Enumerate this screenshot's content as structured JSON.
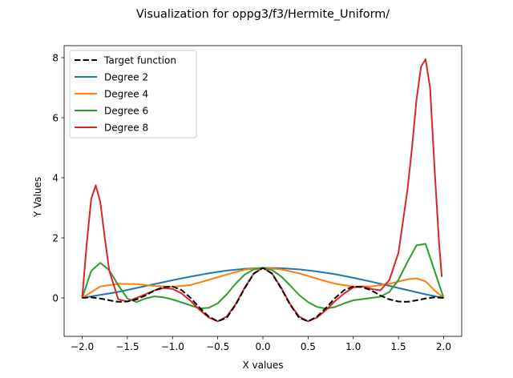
{
  "chart_data": {
    "type": "line",
    "title": "Visualization for oppg3/f3/Hermite_Uniform/",
    "xlabel": "X values",
    "ylabel": "Y Values",
    "xlim": [
      -2.2,
      2.2
    ],
    "ylim": [
      -1.28,
      8.4
    ],
    "xticks": [
      -2.0,
      -1.5,
      -1.0,
      -0.5,
      0.0,
      0.5,
      1.0,
      1.5,
      2.0
    ],
    "xtick_labels": [
      "−2.0",
      "−1.5",
      "−1.0",
      "−0.5",
      "0.0",
      "0.5",
      "1.0",
      "1.5",
      "2.0"
    ],
    "yticks": [
      0,
      2,
      4,
      6,
      8
    ],
    "ytick_labels": [
      "0",
      "2",
      "4",
      "6",
      "8"
    ],
    "grid": false,
    "legend_position": "upper-left",
    "series": [
      {
        "name": "Target function",
        "color": "#000000",
        "dash": "dashed",
        "x": [
          -2.0,
          -1.9,
          -1.8,
          -1.7,
          -1.6,
          -1.5,
          -1.4,
          -1.3,
          -1.2,
          -1.1,
          -1.0,
          -0.9,
          -0.8,
          -0.7,
          -0.6,
          -0.5,
          -0.4,
          -0.3,
          -0.2,
          -0.1,
          0.0,
          0.1,
          0.2,
          0.3,
          0.4,
          0.5,
          0.6,
          0.7,
          0.8,
          0.9,
          1.0,
          1.1,
          1.2,
          1.3,
          1.4,
          1.5,
          1.6,
          1.7,
          1.8,
          1.9,
          2.0
        ],
        "y": [
          0.0,
          0.02,
          -0.02,
          -0.08,
          -0.13,
          -0.12,
          -0.05,
          0.08,
          0.25,
          0.36,
          0.38,
          0.26,
          0.0,
          -0.33,
          -0.62,
          -0.78,
          -0.66,
          -0.22,
          0.33,
          0.81,
          1.0,
          0.81,
          0.33,
          -0.22,
          -0.66,
          -0.78,
          -0.62,
          -0.33,
          0.0,
          0.26,
          0.38,
          0.36,
          0.25,
          0.08,
          -0.05,
          -0.12,
          -0.13,
          -0.08,
          -0.02,
          0.02,
          0.0
        ]
      },
      {
        "name": "Degree 2",
        "color": "#1f77b4",
        "dash": "solid",
        "x": [
          -2.0,
          -1.8,
          -1.6,
          -1.4,
          -1.2,
          -1.0,
          -0.8,
          -0.6,
          -0.4,
          -0.2,
          0.0,
          0.2,
          0.4,
          0.6,
          0.8,
          1.0,
          1.2,
          1.4,
          1.6,
          1.8,
          2.0
        ],
        "y": [
          0.0,
          0.1,
          0.2,
          0.33,
          0.46,
          0.59,
          0.71,
          0.82,
          0.91,
          0.97,
          1.0,
          0.99,
          0.95,
          0.88,
          0.79,
          0.67,
          0.54,
          0.4,
          0.26,
          0.12,
          0.0
        ]
      },
      {
        "name": "Degree 4",
        "color": "#ff7f0e",
        "dash": "solid",
        "x": [
          -2.0,
          -1.8,
          -1.6,
          -1.4,
          -1.2,
          -1.0,
          -0.8,
          -0.6,
          -0.4,
          -0.2,
          0.0,
          0.2,
          0.4,
          0.6,
          0.8,
          1.0,
          1.2,
          1.4,
          1.6,
          1.7,
          1.8,
          1.9,
          2.0
        ],
        "y": [
          0.0,
          0.38,
          0.47,
          0.46,
          0.4,
          0.37,
          0.43,
          0.6,
          0.78,
          0.94,
          1.0,
          0.95,
          0.82,
          0.64,
          0.47,
          0.38,
          0.38,
          0.47,
          0.62,
          0.65,
          0.55,
          0.25,
          0.0
        ]
      },
      {
        "name": "Degree 6",
        "color": "#2ca02c",
        "dash": "solid",
        "x": [
          -2.0,
          -1.9,
          -1.8,
          -1.7,
          -1.6,
          -1.5,
          -1.4,
          -1.3,
          -1.2,
          -1.1,
          -1.0,
          -0.9,
          -0.8,
          -0.7,
          -0.6,
          -0.5,
          -0.4,
          -0.3,
          -0.2,
          -0.1,
          0.0,
          0.1,
          0.2,
          0.3,
          0.4,
          0.5,
          0.6,
          0.7,
          0.8,
          0.9,
          1.0,
          1.1,
          1.2,
          1.3,
          1.4,
          1.5,
          1.6,
          1.7,
          1.8,
          1.9,
          2.0
        ],
        "y": [
          0.0,
          0.9,
          1.17,
          0.92,
          0.42,
          -0.02,
          -0.14,
          -0.02,
          0.05,
          0.02,
          -0.05,
          -0.15,
          -0.25,
          -0.35,
          -0.33,
          -0.18,
          0.12,
          0.48,
          0.78,
          0.95,
          1.0,
          0.93,
          0.72,
          0.42,
          0.1,
          -0.14,
          -0.3,
          -0.36,
          -0.3,
          -0.18,
          -0.08,
          -0.04,
          0.0,
          0.04,
          0.2,
          0.6,
          1.2,
          1.75,
          1.8,
          0.9,
          0.0
        ]
      },
      {
        "name": "Degree 8",
        "color": "#d62728",
        "dash": "solid",
        "x": [
          -2.0,
          -1.95,
          -1.9,
          -1.85,
          -1.8,
          -1.75,
          -1.7,
          -1.6,
          -1.5,
          -1.4,
          -1.3,
          -1.2,
          -1.1,
          -1.0,
          -0.9,
          -0.8,
          -0.7,
          -0.6,
          -0.5,
          -0.4,
          -0.3,
          -0.2,
          -0.1,
          0.0,
          0.1,
          0.2,
          0.3,
          0.4,
          0.5,
          0.6,
          0.7,
          0.8,
          0.9,
          1.0,
          1.1,
          1.2,
          1.3,
          1.4,
          1.5,
          1.6,
          1.65,
          1.7,
          1.75,
          1.8,
          1.85,
          1.9,
          1.95,
          1.98
        ],
        "y": [
          0.0,
          1.8,
          3.3,
          3.75,
          3.2,
          2.0,
          0.9,
          -0.05,
          -0.12,
          0.0,
          0.12,
          0.25,
          0.33,
          0.3,
          0.15,
          -0.1,
          -0.4,
          -0.65,
          -0.78,
          -0.62,
          -0.2,
          0.35,
          0.82,
          1.0,
          0.82,
          0.35,
          -0.2,
          -0.62,
          -0.78,
          -0.65,
          -0.4,
          -0.1,
          0.15,
          0.35,
          0.38,
          0.3,
          0.25,
          0.6,
          1.5,
          3.6,
          5.0,
          6.6,
          7.7,
          7.95,
          7.0,
          4.3,
          1.8,
          0.7
        ]
      }
    ]
  }
}
